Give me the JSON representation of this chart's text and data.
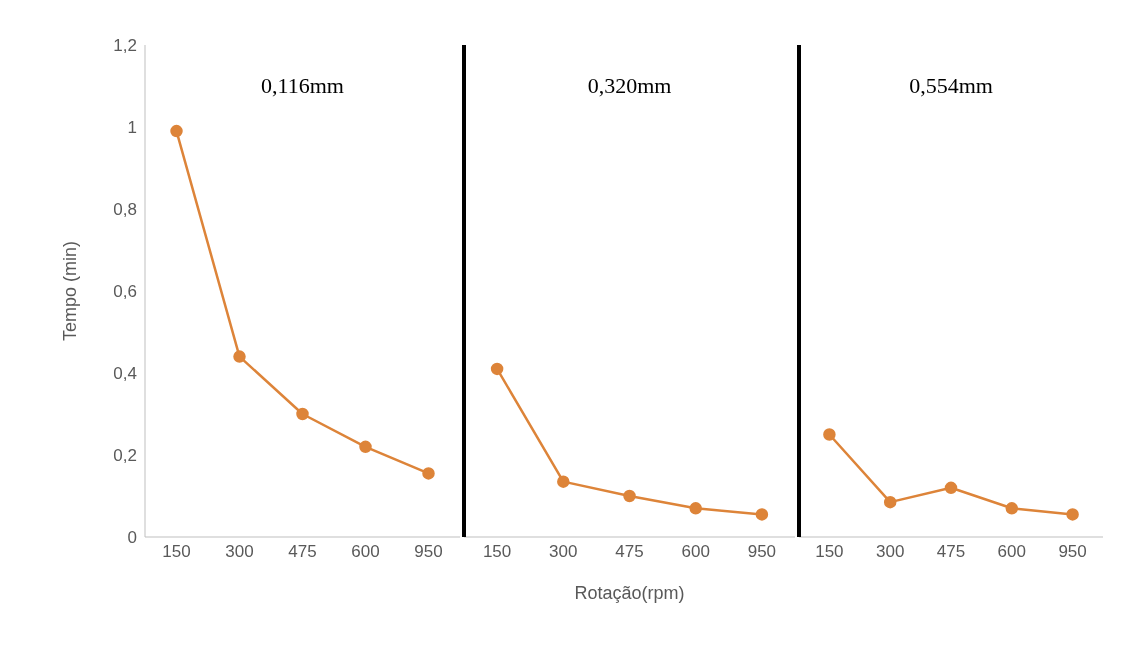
{
  "chart_data": [
    {
      "type": "line",
      "title": "0,116mm",
      "ylabel": "Tempo (min)",
      "categories": [
        "150",
        "300",
        "475",
        "600",
        "950"
      ],
      "series": [
        {
          "color": "#dd8439",
          "values": [
            0.99,
            0.44,
            0.3,
            0.22,
            0.155
          ]
        }
      ],
      "ylim": [
        0,
        1.2
      ],
      "yticks": [
        {
          "value": 0,
          "label": "0"
        },
        {
          "value": 0.2,
          "label": "0,2"
        },
        {
          "value": 0.4,
          "label": "0,4"
        },
        {
          "value": 0.6,
          "label": "0,6"
        },
        {
          "value": 0.8,
          "label": "0,8"
        },
        {
          "value": 1,
          "label": "1"
        },
        {
          "value": 1.2,
          "label": "1,2"
        }
      ],
      "marker": "circle",
      "grid": false,
      "legend": false
    },
    {
      "type": "line",
      "title": "0,320mm",
      "xlabel": "Rotação(rpm)",
      "categories": [
        "150",
        "300",
        "475",
        "600",
        "950"
      ],
      "series": [
        {
          "color": "#dd8439",
          "values": [
            0.41,
            0.135,
            0.1,
            0.07,
            0.055
          ]
        }
      ],
      "ylim": [
        0,
        1.2
      ],
      "tick_labels": "x",
      "marker": "circle",
      "grid": false,
      "legend": false
    },
    {
      "type": "line",
      "title": "0,554mm",
      "categories": [
        "150",
        "300",
        "475",
        "600",
        "950"
      ],
      "series": [
        {
          "color": "#dd8439",
          "values": [
            0.25,
            0.085,
            0.12,
            0.07,
            0.055
          ]
        }
      ],
      "ylim": [
        0,
        1.2
      ],
      "tick_labels": "x",
      "marker": "circle",
      "grid": false,
      "legend": false
    }
  ]
}
